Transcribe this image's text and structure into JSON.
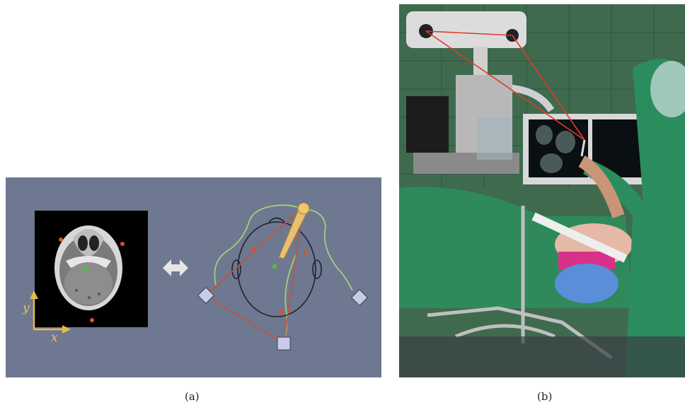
{
  "panel_a": {
    "caption": "(a)",
    "axis_y_label": "y",
    "axis_x_label": "x",
    "colors": {
      "background": "#6e7890",
      "fiducial": "#d9532a",
      "target": "#55b84a",
      "wire": "#9fd27e",
      "tracking_line": "#c9532c",
      "marker": "#c9cce6",
      "probe": "#e8c070",
      "axis": "#e8b84a"
    },
    "icons": [
      "ct-scan",
      "double-arrow",
      "head-outline",
      "tracked-probe",
      "camera-marker"
    ]
  },
  "panel_b": {
    "caption": "(b)",
    "description_icons": [
      "tracking-camera",
      "surgical-monitor",
      "surgeon",
      "patient",
      "pointer-probe"
    ],
    "colors": {
      "wall": "#3f6a4e",
      "drape": "#2e8a5a",
      "camera": "#dcdcdc",
      "laser": "#e03a2a"
    }
  }
}
